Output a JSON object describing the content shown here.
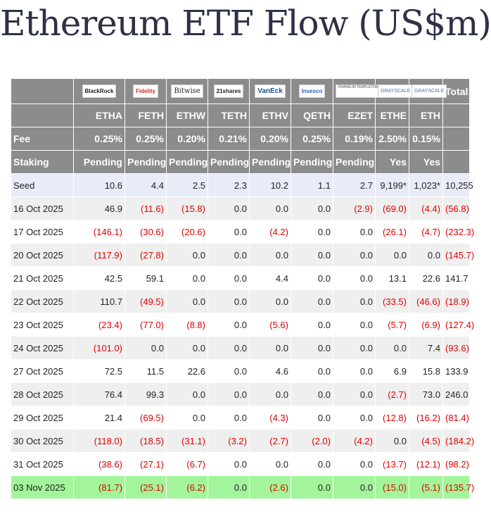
{
  "title": "Ethereum ETF Flow (US$m)",
  "logos": [
    "BlackRock",
    "Fidelity",
    "Bitwise",
    "21shares",
    "VanEck",
    "Invesco",
    "FRANKLIN TEMPLETON",
    "GRAYSCALE",
    "GRAYSCALE"
  ],
  "total_label": "Total",
  "tickers": [
    "ETHA",
    "FETH",
    "ETHW",
    "TETH",
    "ETHV",
    "QETH",
    "EZET",
    "ETHE",
    "ETH"
  ],
  "fee_label": "Fee",
  "fees": [
    "0.25%",
    "0.25%",
    "0.20%",
    "0.21%",
    "0.20%",
    "0.25%",
    "0.19%",
    "2.50%",
    "0.15%"
  ],
  "staking_label": "Staking",
  "staking": [
    "Pending",
    "Pending",
    "Pending",
    "Pending",
    "Pending",
    "Pending",
    "Pending",
    "Yes",
    "Yes"
  ],
  "rows": [
    {
      "date": "Seed",
      "values": [
        "10.6",
        "4.4",
        "2.5",
        "2.3",
        "10.2",
        "1.1",
        "2.7",
        "9,199*",
        "1,023*",
        "10,255"
      ]
    },
    {
      "date": "16 Oct 2025",
      "values": [
        "46.9",
        "(11.6)",
        "(15.8)",
        "0.0",
        "0.0",
        "0.0",
        "(2.9)",
        "(69.0)",
        "(4.4)",
        "(56.8)"
      ]
    },
    {
      "date": "17 Oct 2025",
      "values": [
        "(146.1)",
        "(30.6)",
        "(20.6)",
        "0.0",
        "(4.2)",
        "0.0",
        "0.0",
        "(26.1)",
        "(4.7)",
        "(232.3)"
      ]
    },
    {
      "date": "20 Oct 2025",
      "values": [
        "(117.9)",
        "(27.8)",
        "0.0",
        "0.0",
        "0.0",
        "0.0",
        "0.0",
        "0.0",
        "0.0",
        "(145.7)"
      ]
    },
    {
      "date": "21 Oct 2025",
      "values": [
        "42.5",
        "59.1",
        "0.0",
        "0.0",
        "4.4",
        "0.0",
        "0.0",
        "13.1",
        "22.6",
        "141.7"
      ]
    },
    {
      "date": "22 Oct 2025",
      "values": [
        "110.7",
        "(49.5)",
        "0.0",
        "0.0",
        "0.0",
        "0.0",
        "0.0",
        "(33.5)",
        "(46.6)",
        "(18.9)"
      ]
    },
    {
      "date": "23 Oct 2025",
      "values": [
        "(23.4)",
        "(77.0)",
        "(8.8)",
        "0.0",
        "(5.6)",
        "0.0",
        "0.0",
        "(5.7)",
        "(6.9)",
        "(127.4)"
      ]
    },
    {
      "date": "24 Oct 2025",
      "values": [
        "(101.0)",
        "0.0",
        "0.0",
        "0.0",
        "0.0",
        "0.0",
        "0.0",
        "0.0",
        "7.4",
        "(93.6)"
      ]
    },
    {
      "date": "27 Oct 2025",
      "values": [
        "72.5",
        "11.5",
        "22.6",
        "0.0",
        "4.6",
        "0.0",
        "0.0",
        "6.9",
        "15.8",
        "133.9"
      ]
    },
    {
      "date": "28 Oct 2025",
      "values": [
        "76.4",
        "99.3",
        "0.0",
        "0.0",
        "0.0",
        "0.0",
        "0.0",
        "(2.7)",
        "73.0",
        "246.0"
      ]
    },
    {
      "date": "29 Oct 2025",
      "values": [
        "21.4",
        "(69.5)",
        "0.0",
        "0.0",
        "(4.3)",
        "0.0",
        "0.0",
        "(12.8)",
        "(16.2)",
        "(81.4)"
      ]
    },
    {
      "date": "30 Oct 2025",
      "values": [
        "(118.0)",
        "(18.5)",
        "(31.1)",
        "(3.2)",
        "(2.7)",
        "(2.0)",
        "(4.2)",
        "0.0",
        "(4.5)",
        "(184.2)"
      ]
    },
    {
      "date": "31 Oct 2025",
      "values": [
        "(38.6)",
        "(27.1)",
        "(6.7)",
        "0.0",
        "0.0",
        "0.0",
        "0.0",
        "(13.7)",
        "(12.1)",
        "(98.2)"
      ]
    },
    {
      "date": "03 Nov 2025",
      "values": [
        "(81.7)",
        "(25.1)",
        "(6.2)",
        "0.0",
        "(2.6)",
        "0.0",
        "0.0",
        "(15.0)",
        "(5.1)",
        "(135.7)"
      ]
    }
  ],
  "colors": {
    "header_bg": "#8c8c8c",
    "negative": "#e00000",
    "highlight_row": "#a2f59a",
    "seed_row": "#e8ecf8"
  }
}
